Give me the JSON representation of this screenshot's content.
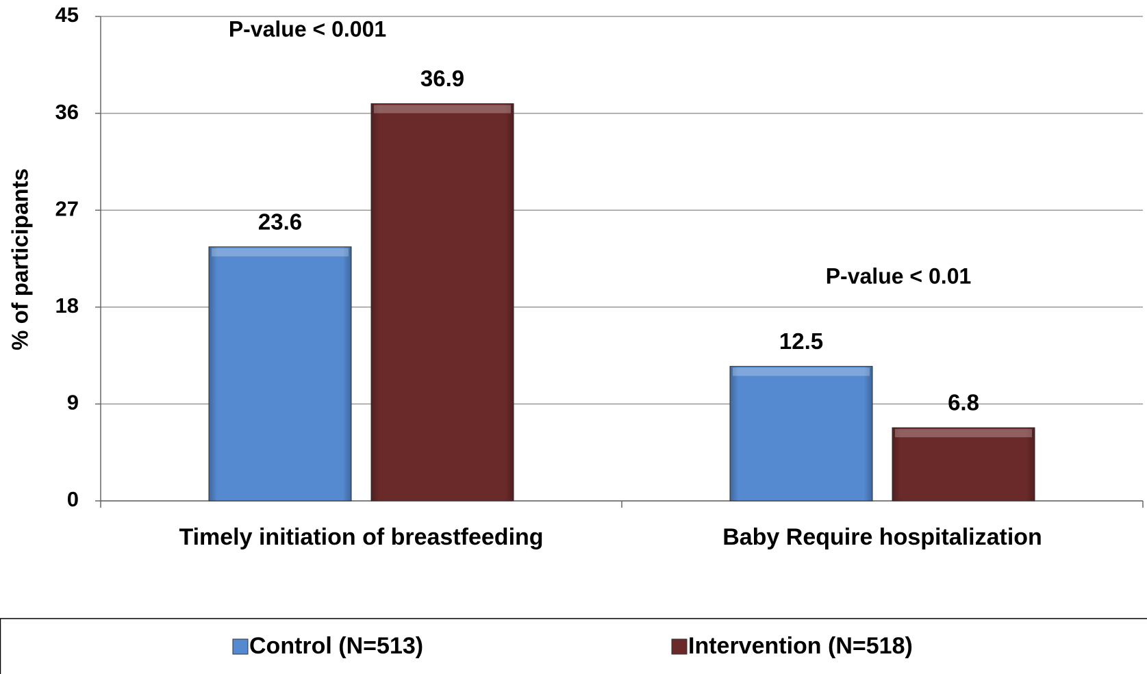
{
  "chart_data": {
    "type": "bar",
    "y_label": "% of participants",
    "categories": [
      "Timely initiation of breastfeeding",
      "Baby Require hospitalization"
    ],
    "series": [
      {
        "name": "Control (N=513)",
        "color": "#558ad0",
        "values": [
          23.6,
          12.5
        ]
      },
      {
        "name": "Intervention (N=518)",
        "color": "#6b2a2a",
        "values": [
          36.9,
          6.8
        ]
      }
    ],
    "annotations": [
      "P-value  < 0.001",
      "P-value  < 0.01"
    ],
    "ylim": [
      0,
      45
    ],
    "yticks": [
      0,
      9,
      18,
      27,
      36,
      45
    ],
    "grid": true,
    "legend": "bottom"
  }
}
